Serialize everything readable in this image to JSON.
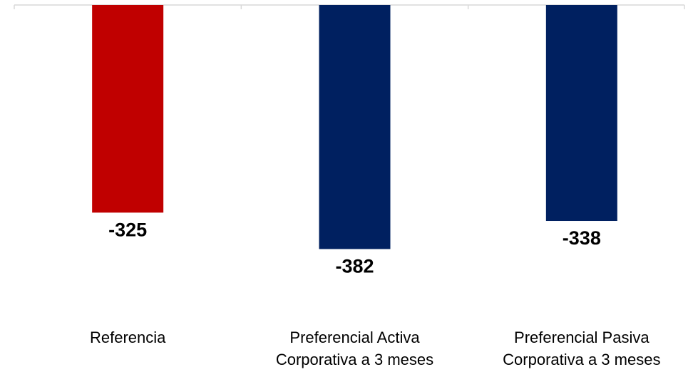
{
  "chart_data": {
    "type": "bar",
    "categories": [
      [
        "Referencia"
      ],
      [
        "Preferencial Activa",
        "Corporativa a 3 meses"
      ],
      [
        "Preferencial Pasiva",
        "Corporativa a 3 meses"
      ]
    ],
    "values": [
      -325,
      -382,
      -338
    ],
    "value_labels": [
      "-325",
      "-382",
      "-338"
    ],
    "bar_colors": [
      "#C00000",
      "#002060",
      "#002060"
    ],
    "title": "",
    "xlabel": "",
    "ylabel": "",
    "ylim": [
      -400,
      0
    ],
    "grid": false,
    "legend": "none"
  }
}
